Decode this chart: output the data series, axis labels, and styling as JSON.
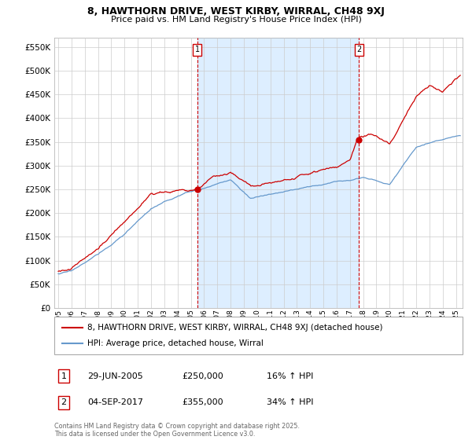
{
  "title_line1": "8, HAWTHORN DRIVE, WEST KIRBY, WIRRAL, CH48 9XJ",
  "title_line2": "Price paid vs. HM Land Registry's House Price Index (HPI)",
  "legend_label1": "8, HAWTHORN DRIVE, WEST KIRBY, WIRRAL, CH48 9XJ (detached house)",
  "legend_label2": "HPI: Average price, detached house, Wirral",
  "annotation1_label": "1",
  "annotation1_date": "29-JUN-2005",
  "annotation1_price": "£250,000",
  "annotation1_hpi": "16% ↑ HPI",
  "annotation2_label": "2",
  "annotation2_date": "04-SEP-2017",
  "annotation2_price": "£355,000",
  "annotation2_hpi": "34% ↑ HPI",
  "footnote": "Contains HM Land Registry data © Crown copyright and database right 2025.\nThis data is licensed under the Open Government Licence v3.0.",
  "sale1_year": 2005.5,
  "sale1_value": 250000,
  "sale2_year": 2017.67,
  "sale2_value": 355000,
  "red_color": "#cc0000",
  "blue_color": "#6699cc",
  "shade_color": "#ddeeff",
  "bg_color": "#ffffff",
  "grid_color": "#cccccc",
  "ylim_min": 0,
  "ylim_max": 570000,
  "ytick_step": 50000,
  "xmin": 1994.7,
  "xmax": 2025.5
}
